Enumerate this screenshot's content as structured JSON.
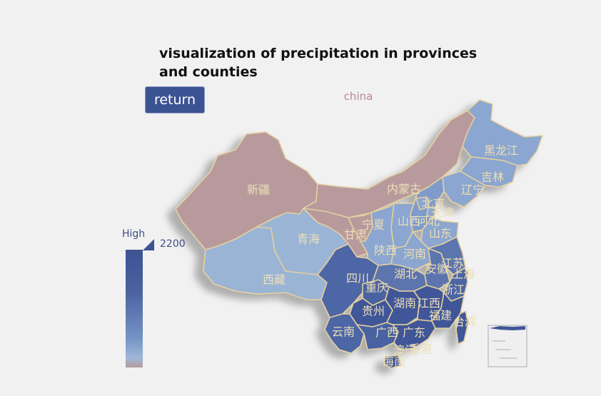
{
  "page": {
    "title": "visualization of precipitation in provinces and counties",
    "return_label": "return",
    "map_title": "china"
  },
  "legend": {
    "high_label": "High",
    "max_value": "2200"
  },
  "colors": {
    "high": "#3d5393",
    "mid": "#7494c6",
    "low": "#9fb8d8",
    "dry": "#b79a9c",
    "border": "#e3cf9e",
    "label": "#ecdfb7"
  },
  "map": {
    "provinces": [
      {
        "id": "xinjiang",
        "name": "新疆",
        "level": "low-dry"
      },
      {
        "id": "xizang",
        "name": "西藏",
        "level": "low"
      },
      {
        "id": "qinghai",
        "name": "青海",
        "level": "low"
      },
      {
        "id": "gansu",
        "name": "甘肃",
        "level": "low-dry"
      },
      {
        "id": "neimenggu",
        "name": "内蒙古",
        "level": "low-dry"
      },
      {
        "id": "ningxia",
        "name": "宁夏",
        "level": "low-dry"
      },
      {
        "id": "heilongjiang",
        "name": "黑龙江",
        "level": "medium"
      },
      {
        "id": "jilin",
        "name": "吉林",
        "level": "medium"
      },
      {
        "id": "liaoning",
        "name": "辽宁",
        "level": "medium"
      },
      {
        "id": "beijing",
        "name": "北京",
        "level": "medium"
      },
      {
        "id": "tianjin",
        "name": "天津",
        "level": "medium"
      },
      {
        "id": "hebei",
        "name": "河北",
        "level": "medium"
      },
      {
        "id": "shanxi",
        "name": "山西",
        "level": "medium"
      },
      {
        "id": "shandong",
        "name": "山东",
        "level": "medium"
      },
      {
        "id": "shaanxi",
        "name": "陕西",
        "level": "medium"
      },
      {
        "id": "henan",
        "name": "河南",
        "level": "medium"
      },
      {
        "id": "sichuan",
        "name": "四川",
        "level": "high"
      },
      {
        "id": "chongqing",
        "name": "重庆",
        "level": "high"
      },
      {
        "id": "hubei",
        "name": "湖北",
        "level": "high"
      },
      {
        "id": "anhui",
        "name": "安徽",
        "level": "high"
      },
      {
        "id": "jiangsu",
        "name": "江苏",
        "level": "high"
      },
      {
        "id": "shanghai",
        "name": "上海",
        "level": "high"
      },
      {
        "id": "zhejiang",
        "name": "浙江",
        "level": "high"
      },
      {
        "id": "guizhou",
        "name": "贵州",
        "level": "high"
      },
      {
        "id": "hunan",
        "name": "湖南",
        "level": "high"
      },
      {
        "id": "jiangxi",
        "name": "江西",
        "level": "high"
      },
      {
        "id": "fujian",
        "name": "福建",
        "level": "high"
      },
      {
        "id": "taiwan",
        "name": "台湾",
        "level": "high"
      },
      {
        "id": "yunnan",
        "name": "云南",
        "level": "high"
      },
      {
        "id": "guangxi",
        "name": "广西",
        "level": "high"
      },
      {
        "id": "guangdong",
        "name": "广东",
        "level": "high"
      },
      {
        "id": "xianggang",
        "name": "香港",
        "level": "high"
      },
      {
        "id": "aomen",
        "name": "澳门",
        "level": "high"
      },
      {
        "id": "hainan",
        "name": "海南",
        "level": "high"
      }
    ]
  }
}
